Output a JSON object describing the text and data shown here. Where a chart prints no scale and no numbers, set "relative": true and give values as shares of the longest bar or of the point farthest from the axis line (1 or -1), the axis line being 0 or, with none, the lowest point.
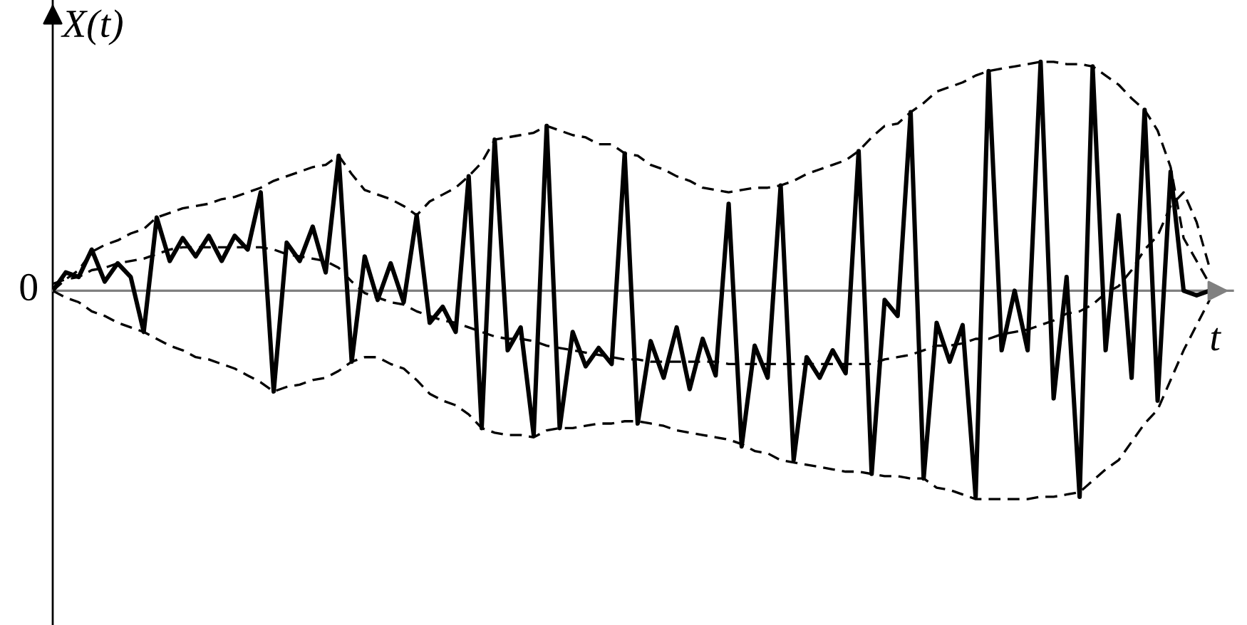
{
  "chart_data": {
    "type": "line",
    "relative": true,
    "xlabel": "t",
    "ylabel": "X(t)",
    "annotations": [
      "0"
    ],
    "categories": [
      null,
      null,
      null,
      null,
      null,
      null,
      null,
      null,
      null,
      null,
      null,
      null,
      null,
      null,
      null,
      null,
      null,
      null,
      null,
      null,
      null,
      null,
      null,
      null,
      null,
      null,
      null,
      null,
      null,
      null,
      null,
      null,
      null,
      null,
      null,
      null,
      null,
      null,
      null,
      null,
      null,
      null,
      null,
      null,
      null,
      null,
      null,
      null,
      null,
      null,
      null,
      null,
      null,
      null,
      null,
      null,
      null,
      null,
      null,
      null,
      null,
      null,
      null,
      null,
      null,
      null,
      null,
      null,
      null,
      null,
      null,
      null,
      null,
      null,
      null,
      null,
      null,
      null,
      null,
      null,
      null,
      null,
      null,
      null,
      null,
      null,
      null,
      null,
      null,
      null
    ],
    "series": [
      {
        "color": "#000000",
        "line_style": "solid",
        "values": [
          0,
          0.08,
          0.06,
          0.18,
          0.04,
          0.12,
          0.06,
          -0.18,
          0.32,
          0.13,
          0.23,
          0.15,
          0.24,
          0.13,
          0.24,
          0.18,
          0.43,
          -0.44,
          0.21,
          0.13,
          0.28,
          0.08,
          0.59,
          -0.31,
          0.15,
          -0.04,
          0.12,
          -0.05,
          0.33,
          -0.14,
          -0.07,
          -0.18,
          0.5,
          -0.6,
          0.66,
          -0.26,
          -0.16,
          -0.63,
          0.72,
          -0.6,
          -0.18,
          -0.33,
          -0.25,
          -0.32,
          0.6,
          -0.58,
          -0.22,
          -0.38,
          -0.16,
          -0.43,
          -0.21,
          -0.37,
          0.38,
          -0.68,
          -0.24,
          -0.38,
          0.46,
          -0.74,
          -0.29,
          -0.38,
          -0.26,
          -0.36,
          0.61,
          -0.8,
          -0.04,
          -0.11,
          0.78,
          -0.82,
          -0.14,
          -0.31,
          -0.15,
          -0.9,
          0.96,
          -0.26,
          0,
          -0.26,
          1.0,
          -0.47,
          0.06,
          -0.9,
          0.98,
          -0.26,
          0.33,
          -0.38,
          0.79,
          -0.48,
          0.52,
          0,
          -0.02,
          0
        ]
      },
      {
        "color": "#000000",
        "line_style": "dashed",
        "values": [
          0,
          0.05,
          0.09,
          0.17,
          0.2,
          0.22,
          0.25,
          0.27,
          0.32,
          0.34,
          0.36,
          0.37,
          0.38,
          0.4,
          0.41,
          0.43,
          0.45,
          0.48,
          0.5,
          0.52,
          0.54,
          0.55,
          0.59,
          0.51,
          0.44,
          0.42,
          0.4,
          0.37,
          0.33,
          0.39,
          0.42,
          0.45,
          0.5,
          0.56,
          0.66,
          0.67,
          0.68,
          0.69,
          0.72,
          0.7,
          0.68,
          0.67,
          0.64,
          0.64,
          0.6,
          0.59,
          0.55,
          0.53,
          0.5,
          0.48,
          0.45,
          0.44,
          0.43,
          0.44,
          0.45,
          0.45,
          0.46,
          0.48,
          0.51,
          0.53,
          0.55,
          0.57,
          0.61,
          0.67,
          0.72,
          0.73,
          0.78,
          0.82,
          0.87,
          0.89,
          0.91,
          0.94,
          0.96,
          0.97,
          0.98,
          0.99,
          1.0,
          1.0,
          0.99,
          0.99,
          0.98,
          0.94,
          0.9,
          0.84,
          0.79,
          0.7,
          0.54,
          0.23,
          0.13,
          0.03
        ]
      },
      {
        "color": "#000000",
        "line_style": "dashed",
        "values": [
          0,
          -0.03,
          -0.05,
          -0.09,
          -0.11,
          -0.14,
          -0.16,
          -0.18,
          -0.21,
          -0.24,
          -0.26,
          -0.29,
          -0.3,
          -0.32,
          -0.34,
          -0.37,
          -0.4,
          -0.44,
          -0.42,
          -0.41,
          -0.39,
          -0.38,
          -0.35,
          -0.31,
          -0.29,
          -0.29,
          -0.32,
          -0.34,
          -0.39,
          -0.45,
          -0.48,
          -0.5,
          -0.54,
          -0.6,
          -0.62,
          -0.63,
          -0.63,
          -0.64,
          -0.61,
          -0.6,
          -0.6,
          -0.59,
          -0.58,
          -0.58,
          -0.57,
          -0.57,
          -0.58,
          -0.59,
          -0.61,
          -0.62,
          -0.63,
          -0.64,
          -0.65,
          -0.67,
          -0.7,
          -0.71,
          -0.74,
          -0.75,
          -0.76,
          -0.77,
          -0.78,
          -0.79,
          -0.79,
          -0.8,
          -0.81,
          -0.81,
          -0.82,
          -0.82,
          -0.86,
          -0.87,
          -0.89,
          -0.91,
          -0.91,
          -0.91,
          -0.91,
          -0.91,
          -0.9,
          -0.9,
          -0.89,
          -0.88,
          -0.83,
          -0.78,
          -0.74,
          -0.66,
          -0.58,
          -0.52,
          -0.39,
          -0.26,
          -0.15,
          -0.04
        ]
      },
      {
        "color": "#000000",
        "line_style": "dashed",
        "values": [
          0.03,
          0.05,
          0.06,
          0.09,
          0.1,
          0.12,
          0.13,
          0.14,
          0.16,
          0.18,
          0.19,
          0.19,
          0.19,
          0.19,
          0.19,
          0.19,
          0.19,
          0.18,
          0.16,
          0.15,
          0.14,
          0.13,
          0.1,
          0.04,
          -0.01,
          -0.03,
          -0.05,
          -0.06,
          -0.09,
          -0.11,
          -0.13,
          -0.14,
          -0.16,
          -0.18,
          -0.2,
          -0.21,
          -0.21,
          -0.22,
          -0.24,
          -0.25,
          -0.26,
          -0.27,
          -0.28,
          -0.29,
          -0.3,
          -0.3,
          -0.31,
          -0.31,
          -0.31,
          -0.31,
          -0.31,
          -0.31,
          -0.32,
          -0.32,
          -0.32,
          -0.32,
          -0.32,
          -0.32,
          -0.32,
          -0.32,
          -0.32,
          -0.32,
          -0.32,
          -0.32,
          -0.3,
          -0.29,
          -0.28,
          -0.26,
          -0.24,
          -0.24,
          -0.23,
          -0.21,
          -0.21,
          -0.19,
          -0.18,
          -0.17,
          -0.15,
          -0.13,
          -0.1,
          -0.09,
          -0.06,
          -0.01,
          0.02,
          0.09,
          0.18,
          0.24,
          0.37,
          0.43,
          0.3,
          0.1
        ]
      }
    ]
  }
}
